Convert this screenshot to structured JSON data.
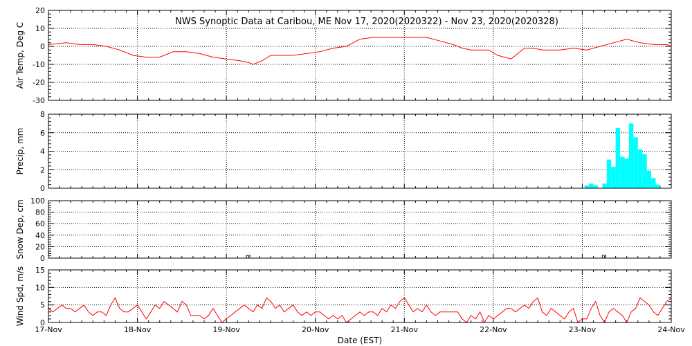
{
  "title": "NWS Synoptic Data at Caribou, ME    Nov 17, 2020(2020322) - Nov 23, 2020(2020328)",
  "x_axis": {
    "label": "Date (EST)",
    "tick_labels": [
      "17-Nov",
      "18-Nov",
      "19-Nov",
      "20-Nov",
      "21-Nov",
      "22-Nov",
      "23-Nov",
      "24-Nov"
    ],
    "range_days": [
      0,
      7
    ]
  },
  "chart_data": [
    {
      "type": "line",
      "ylabel": "Air Temp, Deg C",
      "ylim": [
        -30,
        20
      ],
      "yticks": [
        -30,
        -20,
        -10,
        0,
        10,
        20
      ],
      "grid": true,
      "color": "#ff0000",
      "x": [
        0,
        0.2,
        0.35,
        0.5,
        0.65,
        0.8,
        0.95,
        1.1,
        1.25,
        1.4,
        1.55,
        1.7,
        1.85,
        2.0,
        2.15,
        2.25,
        2.3,
        2.4,
        2.5,
        2.6,
        2.75,
        2.9,
        3.05,
        3.2,
        3.35,
        3.5,
        3.65,
        3.8,
        3.95,
        4.1,
        4.25,
        4.4,
        4.55,
        4.65,
        4.75,
        4.85,
        4.95,
        5.05,
        5.2,
        5.35,
        5.45,
        5.55,
        5.65,
        5.75,
        5.9,
        6.05,
        6.2,
        6.35,
        6.5,
        6.65,
        6.8,
        6.95,
        7.0
      ],
      "y": [
        1,
        2,
        1,
        1,
        0,
        -2,
        -5,
        -6,
        -6,
        -3,
        -3,
        -4,
        -6,
        -7,
        -8,
        -9,
        -10,
        -8,
        -5,
        -5,
        -5,
        -4,
        -3,
        -1,
        0,
        4,
        5,
        5,
        5,
        5,
        5,
        3,
        1,
        -1,
        -2,
        -2,
        -2,
        -5,
        -7,
        -1,
        -1,
        -2,
        -2,
        -2,
        -1,
        -2,
        0,
        2,
        4,
        2,
        1,
        1,
        0
      ]
    },
    {
      "type": "bar",
      "ylabel": "Precip, mm",
      "ylim": [
        0,
        8
      ],
      "yticks": [
        0,
        2,
        4,
        6,
        8
      ],
      "grid": true,
      "color": "#00ffff",
      "x": [
        6.05,
        6.1,
        6.15,
        6.2,
        6.25,
        6.3,
        6.35,
        6.4,
        6.45,
        6.5,
        6.55,
        6.6,
        6.65,
        6.7,
        6.75,
        6.8,
        6.85
      ],
      "values": [
        0.3,
        0.5,
        0.3,
        0.0,
        0.5,
        3.1,
        2.3,
        6.5,
        3.4,
        3.2,
        7.0,
        5.5,
        4.2,
        3.7,
        1.9,
        1.1,
        0.4
      ]
    },
    {
      "type": "bar",
      "ylabel": "Snow Dep, cm",
      "ylim": [
        0,
        100
      ],
      "yticks": [
        0,
        20,
        40,
        60,
        80,
        100
      ],
      "grid": true,
      "color": "#000080",
      "x": [
        2.25,
        6.25
      ],
      "values": [
        1,
        3
      ]
    },
    {
      "type": "line",
      "ylabel": "Wind Spd, m/s",
      "ylim": [
        0,
        15
      ],
      "yticks": [
        0,
        5,
        10,
        15
      ],
      "grid": true,
      "color": "#ff0000",
      "x": [
        0,
        0.05,
        0.1,
        0.15,
        0.2,
        0.25,
        0.3,
        0.35,
        0.4,
        0.45,
        0.5,
        0.55,
        0.6,
        0.65,
        0.7,
        0.75,
        0.8,
        0.85,
        0.9,
        0.95,
        1.0,
        1.05,
        1.1,
        1.15,
        1.2,
        1.25,
        1.3,
        1.35,
        1.4,
        1.45,
        1.5,
        1.55,
        1.6,
        1.65,
        1.7,
        1.75,
        1.8,
        1.85,
        1.9,
        1.95,
        2.0,
        2.05,
        2.1,
        2.15,
        2.2,
        2.25,
        2.3,
        2.35,
        2.4,
        2.45,
        2.5,
        2.55,
        2.6,
        2.65,
        2.7,
        2.75,
        2.8,
        2.85,
        2.9,
        2.95,
        3.0,
        3.05,
        3.1,
        3.15,
        3.2,
        3.25,
        3.3,
        3.35,
        3.4,
        3.45,
        3.5,
        3.55,
        3.6,
        3.65,
        3.7,
        3.75,
        3.8,
        3.85,
        3.9,
        3.95,
        4.0,
        4.05,
        4.1,
        4.15,
        4.2,
        4.25,
        4.3,
        4.35,
        4.4,
        4.45,
        4.5,
        4.55,
        4.6,
        4.65,
        4.7,
        4.75,
        4.8,
        4.85,
        4.9,
        4.95,
        5.0,
        5.05,
        5.1,
        5.15,
        5.2,
        5.25,
        5.3,
        5.35,
        5.4,
        5.45,
        5.5,
        5.55,
        5.6,
        5.65,
        5.7,
        5.75,
        5.8,
        5.85,
        5.9,
        5.95,
        6.0,
        6.05,
        6.1,
        6.15,
        6.2,
        6.25,
        6.3,
        6.35,
        6.4,
        6.45,
        6.5,
        6.55,
        6.6,
        6.65,
        6.7,
        6.75,
        6.8,
        6.85,
        6.9,
        6.95,
        7.0
      ],
      "y": [
        4,
        3,
        4,
        5,
        4,
        4,
        3,
        4,
        5,
        3,
        2,
        3,
        3,
        2,
        5,
        7,
        4,
        3,
        3,
        4,
        5,
        3,
        1,
        3,
        5,
        4,
        6,
        5,
        4,
        3,
        6,
        5,
        2,
        2,
        2,
        1,
        2,
        4,
        2,
        0,
        1,
        2,
        3,
        4,
        5,
        4,
        3,
        5,
        4,
        7,
        6,
        4,
        5,
        3,
        4,
        5,
        3,
        2,
        3,
        2,
        3,
        3,
        2,
        1,
        2,
        1,
        2,
        0,
        1,
        2,
        3,
        2,
        3,
        3,
        2,
        4,
        3,
        5,
        4,
        6,
        7,
        5,
        3,
        4,
        3,
        5,
        3,
        2,
        3,
        3,
        3,
        3,
        3,
        1,
        0,
        2,
        1,
        3,
        0,
        2,
        1,
        2,
        3,
        4,
        4,
        3,
        4,
        5,
        4,
        6,
        7,
        3,
        2,
        4,
        3,
        2,
        1,
        3,
        4,
        0,
        1,
        1,
        4,
        6,
        2,
        0,
        3,
        4,
        3,
        2,
        0,
        3,
        4,
        7,
        6,
        5,
        3,
        2,
        4,
        6,
        7
      ]
    }
  ]
}
